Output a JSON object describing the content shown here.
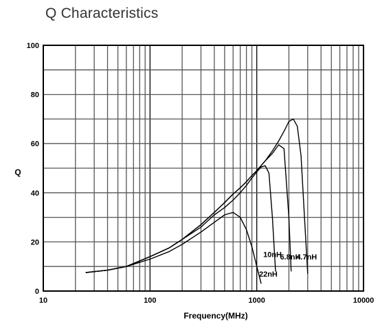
{
  "chart_data": {
    "type": "line",
    "title": "Q Characteristics",
    "xlabel": "Frequency(MHz)",
    "ylabel": "Q",
    "xscale": "log",
    "xlim": [
      10,
      10000
    ],
    "ylim": [
      0,
      100
    ],
    "grid": true,
    "x_tick_labels": [
      "10",
      "100",
      "1000",
      "10000"
    ],
    "y_tick_labels": [
      "0",
      "20",
      "40",
      "60",
      "80",
      "100"
    ],
    "series": [
      {
        "name": "22nH",
        "x": [
          25,
          40,
          60,
          100,
          150,
          200,
          300,
          400,
          500,
          600,
          700,
          800,
          900,
          1000,
          1100
        ],
        "y": [
          7.5,
          8.5,
          10,
          13,
          16,
          19,
          24,
          28,
          31,
          32,
          30,
          25,
          18,
          10,
          3
        ]
      },
      {
        "name": "10nH",
        "x": [
          25,
          40,
          60,
          100,
          150,
          200,
          300,
          400,
          500,
          600,
          700,
          800,
          900,
          1000,
          1100,
          1200,
          1300,
          1400,
          1500
        ],
        "y": [
          7.5,
          8.5,
          10,
          14,
          17.5,
          21,
          26,
          31,
          34,
          37,
          40,
          43,
          46,
          48.5,
          50.5,
          51,
          48,
          30,
          8
        ]
      },
      {
        "name": "6.8nH",
        "x": [
          25,
          40,
          60,
          100,
          150,
          200,
          300,
          400,
          500,
          600,
          700,
          800,
          900,
          1000,
          1200,
          1400,
          1600,
          1800,
          2000,
          2100
        ],
        "y": [
          7.5,
          8.5,
          10,
          14,
          17.5,
          21,
          27,
          32,
          36,
          39.5,
          42,
          44.5,
          47,
          49,
          53,
          56,
          59.5,
          58,
          30,
          8
        ]
      },
      {
        "name": "4.7nH",
        "x": [
          25,
          40,
          60,
          100,
          150,
          200,
          300,
          400,
          500,
          600,
          700,
          800,
          900,
          1000,
          1200,
          1400,
          1600,
          1800,
          2000,
          2200,
          2400,
          2600,
          2800,
          3000
        ],
        "y": [
          7.5,
          8.5,
          10,
          14,
          17.5,
          21,
          27,
          32,
          36,
          39.5,
          42,
          44.5,
          47,
          49,
          53,
          57,
          61,
          65,
          69,
          70,
          67,
          55,
          30,
          7
        ]
      }
    ],
    "annotations": [
      {
        "text": "22nH",
        "x": 1050,
        "y": 7
      },
      {
        "text": "10nH",
        "x": 1150,
        "y": 15
      },
      {
        "text": "6.8nH",
        "x": 1650,
        "y": 14
      },
      {
        "text": "4.7nH",
        "x": 2350,
        "y": 14
      }
    ],
    "colors": {
      "line": "#000000",
      "grid": "#555555"
    }
  }
}
